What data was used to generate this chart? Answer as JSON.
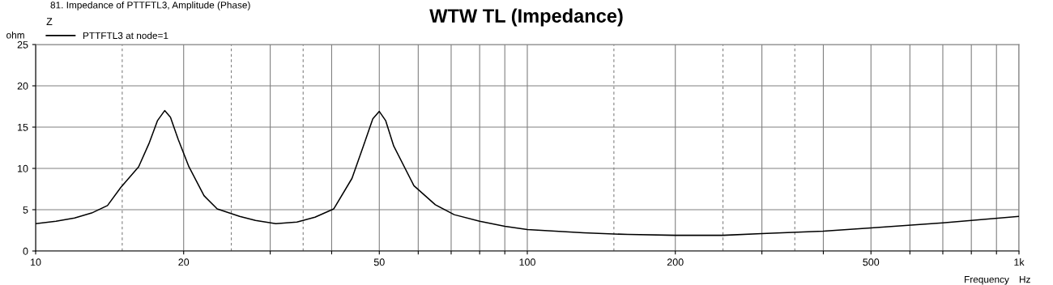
{
  "chart_data": {
    "type": "line",
    "title": "WTW TL (Impedance)",
    "subtitle": "81. Impedance of PTTFTL3, Amplitude (Phase)",
    "ylabel": "ohm",
    "xlabel": "Frequency",
    "legend_title": "Z",
    "legend": "top left",
    "annotations": [
      "Hz"
    ],
    "log": "x",
    "grid": true,
    "line_style": "solid",
    "marker": "none",
    "xlim": [
      10,
      1000
    ],
    "ylim": [
      0,
      25
    ],
    "xticks": [
      10,
      20,
      {
        "value": 30,
        "label": null
      },
      {
        "value": 40,
        "label": null
      },
      50,
      {
        "value": 60,
        "label": null
      },
      {
        "value": 70,
        "label": null
      },
      {
        "value": 80,
        "label": null
      },
      {
        "value": 90,
        "label": null
      },
      100,
      200,
      {
        "value": 300,
        "label": null
      },
      {
        "value": 400,
        "label": null
      },
      500,
      {
        "value": 600,
        "label": null
      },
      {
        "value": 700,
        "label": null
      },
      {
        "value": 800,
        "label": null
      },
      {
        "value": 900,
        "label": null
      },
      {
        "value": 1000,
        "label": "1k"
      }
    ],
    "yticks": [
      0,
      5,
      10,
      15,
      20,
      25
    ],
    "ref_lines": [
      {
        "axis": "x",
        "value": 15,
        "line_style": "dashed",
        "color": "#808080"
      },
      {
        "axis": "x",
        "value": 25,
        "line_style": "dashed",
        "color": "#808080"
      },
      {
        "axis": "x",
        "value": 35,
        "line_style": "dashed",
        "color": "#808080"
      },
      {
        "axis": "x",
        "value": 150,
        "line_style": "dashed",
        "color": "#808080"
      },
      {
        "axis": "x",
        "value": 250,
        "line_style": "dashed",
        "color": "#808080"
      },
      {
        "axis": "x",
        "value": 350,
        "line_style": "dashed",
        "color": "#808080"
      }
    ],
    "series": [
      {
        "name": "PTTFTL3 at node=1",
        "color": "#000000",
        "x": [
          10,
          11,
          12,
          13,
          14,
          14.9,
          16.2,
          17,
          17.7,
          18.3,
          18.8,
          19.5,
          20.5,
          22,
          23.4,
          26,
          28,
          30.8,
          34,
          37,
          40.4,
          44,
          46.4,
          48.5,
          50,
          51.5,
          53.5,
          58.8,
          65,
          71,
          80,
          90,
          100,
          130,
          160,
          200,
          250,
          300,
          400,
          500,
          700,
          1000
        ],
        "values": [
          3.3,
          3.6,
          4.0,
          4.6,
          5.5,
          7.7,
          10.2,
          13.0,
          15.8,
          17.0,
          16.2,
          13.5,
          10.2,
          6.7,
          5.1,
          4.2,
          3.7,
          3.3,
          3.5,
          4.1,
          5.1,
          8.8,
          12.7,
          16.0,
          16.9,
          15.8,
          12.7,
          7.9,
          5.6,
          4.4,
          3.6,
          3.0,
          2.6,
          2.2,
          2.0,
          1.9,
          1.9,
          2.1,
          2.4,
          2.8,
          3.4,
          4.2
        ]
      }
    ]
  }
}
